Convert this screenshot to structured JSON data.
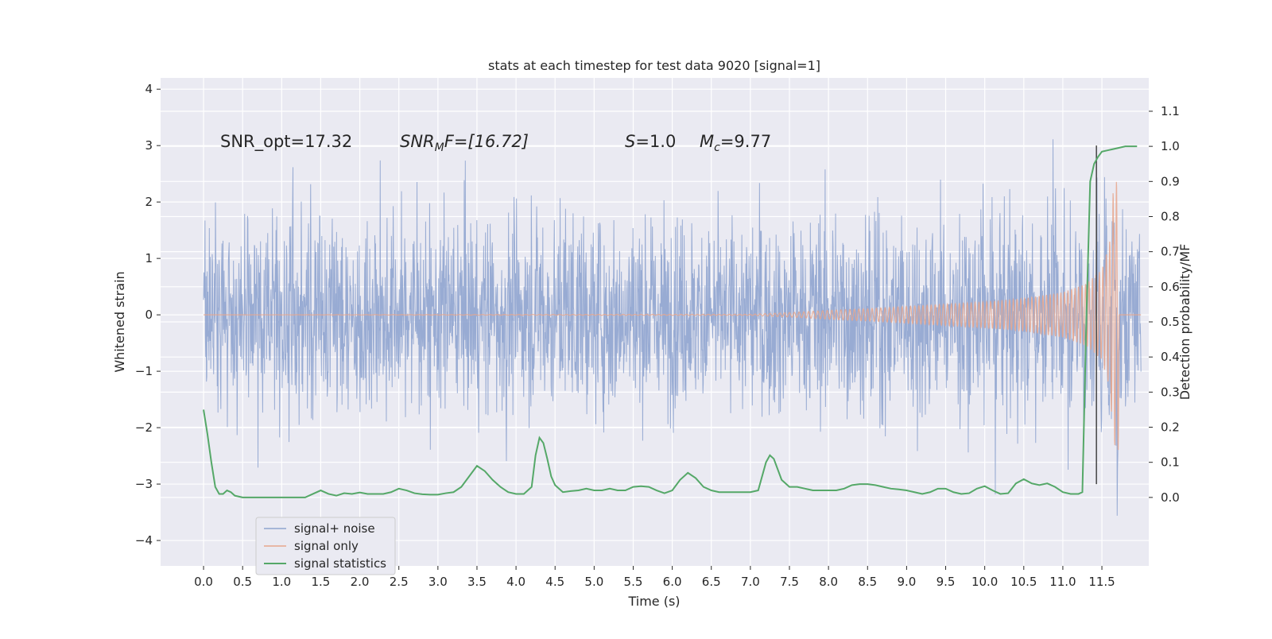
{
  "chart_data": {
    "type": "line",
    "title": "stats at each timestep for test data 9020 [signal=1]",
    "xlabel": "Time (s)",
    "ylabel": "Whitened strain",
    "y2label": "Detection probability/MF",
    "xlim": [
      -0.55,
      12.1
    ],
    "ylim": [
      -4.45,
      4.2
    ],
    "y2lim": [
      -0.195,
      1.195
    ],
    "xticks": [
      "0.0",
      "0.5",
      "1.0",
      "1.5",
      "2.0",
      "2.5",
      "3.0",
      "3.5",
      "4.0",
      "4.5",
      "5.0",
      "5.5",
      "6.0",
      "6.5",
      "7.0",
      "7.5",
      "8.0",
      "8.5",
      "9.0",
      "9.5",
      "10.0",
      "10.5",
      "11.0",
      "11.5"
    ],
    "yticks": [
      "−4",
      "−3",
      "−2",
      "−1",
      "0",
      "1",
      "2",
      "3",
      "4"
    ],
    "y2ticks": [
      "0.0",
      "0.1",
      "0.2",
      "0.3",
      "0.4",
      "0.5",
      "0.6",
      "0.7",
      "0.8",
      "0.9",
      "1.0",
      "1.1"
    ],
    "grid": true,
    "legend_position": "lower-left",
    "annotations": {
      "snr_opt": "SNR_opt=17.32",
      "snr_mf_main": "SNR",
      "snr_mf_sub": "M",
      "snr_mf_rest": "F=[16.72]",
      "s_main": "S",
      "s_rest": "=1.0",
      "mc_main": "M",
      "mc_sub": "c",
      "mc_rest": "=9.77"
    },
    "event_marker": {
      "x": 11.43,
      "y_range": [
        -3.0,
        3.0
      ]
    },
    "series": [
      {
        "name": "signal+ noise",
        "color": "#8fa4cf",
        "description_stats": {
          "typical_range": [
            -1.8,
            1.8
          ],
          "max": 3.8,
          "min": -4.1
        },
        "x_range": [
          0.0,
          12.0
        ]
      },
      {
        "name": "signal only",
        "color": "#e8a68c",
        "envelope": {
          "x": [
            0.0,
            7.0,
            7.5,
            8.0,
            8.5,
            9.0,
            9.5,
            10.0,
            10.5,
            11.0,
            11.3,
            11.5,
            11.6,
            11.65,
            11.7
          ],
          "amp": [
            0.0,
            0.01,
            0.04,
            0.08,
            0.11,
            0.15,
            0.19,
            0.23,
            0.29,
            0.4,
            0.55,
            0.8,
            1.3,
            2.3,
            2.4
          ]
        },
        "merger_x": 11.7,
        "x_range": [
          0.0,
          12.0
        ]
      },
      {
        "name": "signal statistics",
        "color": "#55a868",
        "x": [
          0.0,
          0.05,
          0.1,
          0.15,
          0.2,
          0.25,
          0.3,
          0.35,
          0.4,
          0.5,
          0.6,
          0.7,
          0.8,
          0.9,
          1.0,
          1.1,
          1.2,
          1.3,
          1.4,
          1.5,
          1.6,
          1.7,
          1.8,
          1.9,
          2.0,
          2.1,
          2.2,
          2.3,
          2.4,
          2.5,
          2.6,
          2.7,
          2.8,
          2.9,
          3.0,
          3.1,
          3.2,
          3.3,
          3.4,
          3.5,
          3.6,
          3.7,
          3.8,
          3.9,
          4.0,
          4.1,
          4.2,
          4.25,
          4.3,
          4.35,
          4.4,
          4.45,
          4.5,
          4.6,
          4.7,
          4.8,
          4.9,
          5.0,
          5.1,
          5.2,
          5.3,
          5.4,
          5.5,
          5.6,
          5.7,
          5.8,
          5.9,
          6.0,
          6.1,
          6.2,
          6.3,
          6.4,
          6.5,
          6.6,
          6.7,
          6.8,
          6.9,
          7.0,
          7.1,
          7.2,
          7.25,
          7.3,
          7.35,
          7.4,
          7.5,
          7.6,
          7.7,
          7.8,
          7.9,
          8.0,
          8.1,
          8.2,
          8.3,
          8.4,
          8.5,
          8.6,
          8.7,
          8.8,
          8.9,
          9.0,
          9.1,
          9.2,
          9.3,
          9.4,
          9.5,
          9.6,
          9.7,
          9.8,
          9.9,
          10.0,
          10.1,
          10.2,
          10.3,
          10.4,
          10.5,
          10.6,
          10.7,
          10.8,
          10.9,
          11.0,
          11.1,
          11.2,
          11.25,
          11.3,
          11.35,
          11.4,
          11.45,
          11.5,
          11.6,
          11.7,
          11.8,
          11.9,
          11.95
        ],
        "values": [
          0.25,
          0.18,
          0.1,
          0.03,
          0.01,
          0.01,
          0.02,
          0.015,
          0.005,
          0.0,
          0.0,
          0.0,
          0.0,
          0.0,
          0.0,
          0.0,
          0.0,
          0.0,
          0.01,
          0.02,
          0.01,
          0.005,
          0.012,
          0.01,
          0.014,
          0.01,
          0.01,
          0.01,
          0.015,
          0.025,
          0.02,
          0.012,
          0.009,
          0.008,
          0.008,
          0.012,
          0.015,
          0.03,
          0.06,
          0.09,
          0.075,
          0.05,
          0.03,
          0.015,
          0.01,
          0.01,
          0.03,
          0.12,
          0.17,
          0.155,
          0.11,
          0.06,
          0.035,
          0.015,
          0.018,
          0.02,
          0.025,
          0.02,
          0.02,
          0.025,
          0.02,
          0.02,
          0.03,
          0.032,
          0.03,
          0.02,
          0.012,
          0.02,
          0.05,
          0.07,
          0.055,
          0.03,
          0.02,
          0.015,
          0.015,
          0.015,
          0.015,
          0.015,
          0.02,
          0.1,
          0.12,
          0.11,
          0.08,
          0.05,
          0.03,
          0.03,
          0.025,
          0.02,
          0.02,
          0.02,
          0.02,
          0.025,
          0.035,
          0.038,
          0.038,
          0.035,
          0.03,
          0.025,
          0.023,
          0.02,
          0.015,
          0.01,
          0.015,
          0.025,
          0.025,
          0.015,
          0.01,
          0.012,
          0.025,
          0.032,
          0.02,
          0.01,
          0.012,
          0.04,
          0.052,
          0.04,
          0.035,
          0.04,
          0.03,
          0.015,
          0.01,
          0.01,
          0.015,
          0.5,
          0.9,
          0.95,
          0.97,
          0.985,
          0.99,
          0.995,
          1.0,
          1.0,
          1.0
        ]
      }
    ]
  }
}
